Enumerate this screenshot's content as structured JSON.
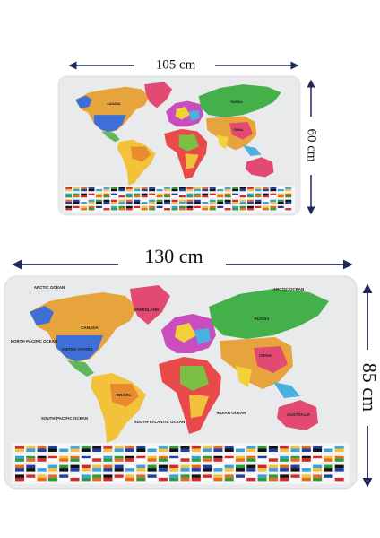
{
  "small_rug": {
    "width_label": "105 cm",
    "height_label": "60 cm",
    "labels": [
      "RUSSIA",
      "CHINA",
      "CANADA"
    ]
  },
  "large_rug": {
    "width_label": "130 cm",
    "height_label": "85 cm",
    "labels": [
      "ARCTIC OCEAN",
      "ARCTIC OCEAN",
      "CANADA",
      "UNITED STATES",
      "GREENLAND",
      "NORTH PACIFIC OCEAN",
      "RUSSIA",
      "CHINA",
      "BRAZIL",
      "AUSTRALIA",
      "SOUTH PACIFIC OCEAN",
      "SOUTH ATLANTIC OCEAN",
      "INDIAN OCEAN"
    ]
  }
}
